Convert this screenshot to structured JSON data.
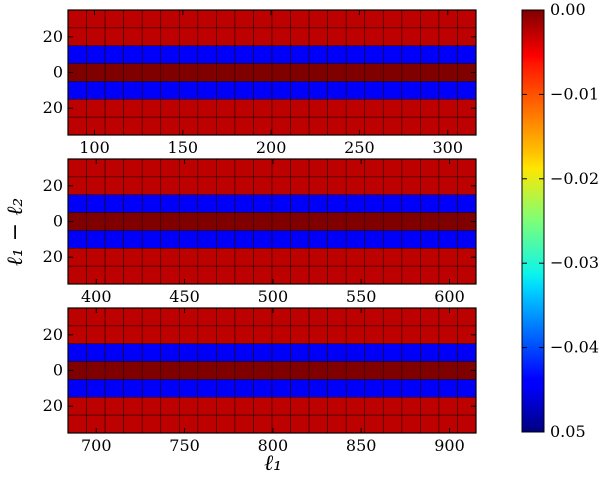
{
  "figure": {
    "ylabel": "ℓ₁ − ℓ₂",
    "xlabel": "ℓ₁"
  },
  "chart_data": {
    "type": "heatmap",
    "panels": [
      {
        "xlim": [
          85,
          316
        ],
        "xticks": [
          100,
          150,
          200,
          250,
          300
        ],
        "ylim": [
          -35,
          35
        ],
        "yticks": [
          20,
          0,
          20
        ]
      },
      {
        "xlim": [
          384,
          615
        ],
        "xticks": [
          400,
          450,
          500,
          550,
          600
        ],
        "ylim": [
          -35,
          35
        ],
        "yticks": [
          20,
          0,
          20
        ]
      },
      {
        "xlim": [
          684,
          915
        ],
        "xticks": [
          700,
          750,
          800,
          850,
          900
        ],
        "ylim": [
          -35,
          35
        ],
        "yticks": [
          20,
          0,
          20
        ]
      }
    ],
    "grid_columns": 22,
    "row_values": [
      -0.003,
      -0.003,
      -0.044,
      0.0,
      -0.044,
      -0.003,
      -0.003
    ],
    "colorbar": {
      "colormap": "jet",
      "ticks": [
        "0.00",
        "−0.01",
        "−0.02",
        "−0.03",
        "−0.04",
        "0.05"
      ],
      "range": [
        -0.05,
        0.0
      ]
    }
  }
}
